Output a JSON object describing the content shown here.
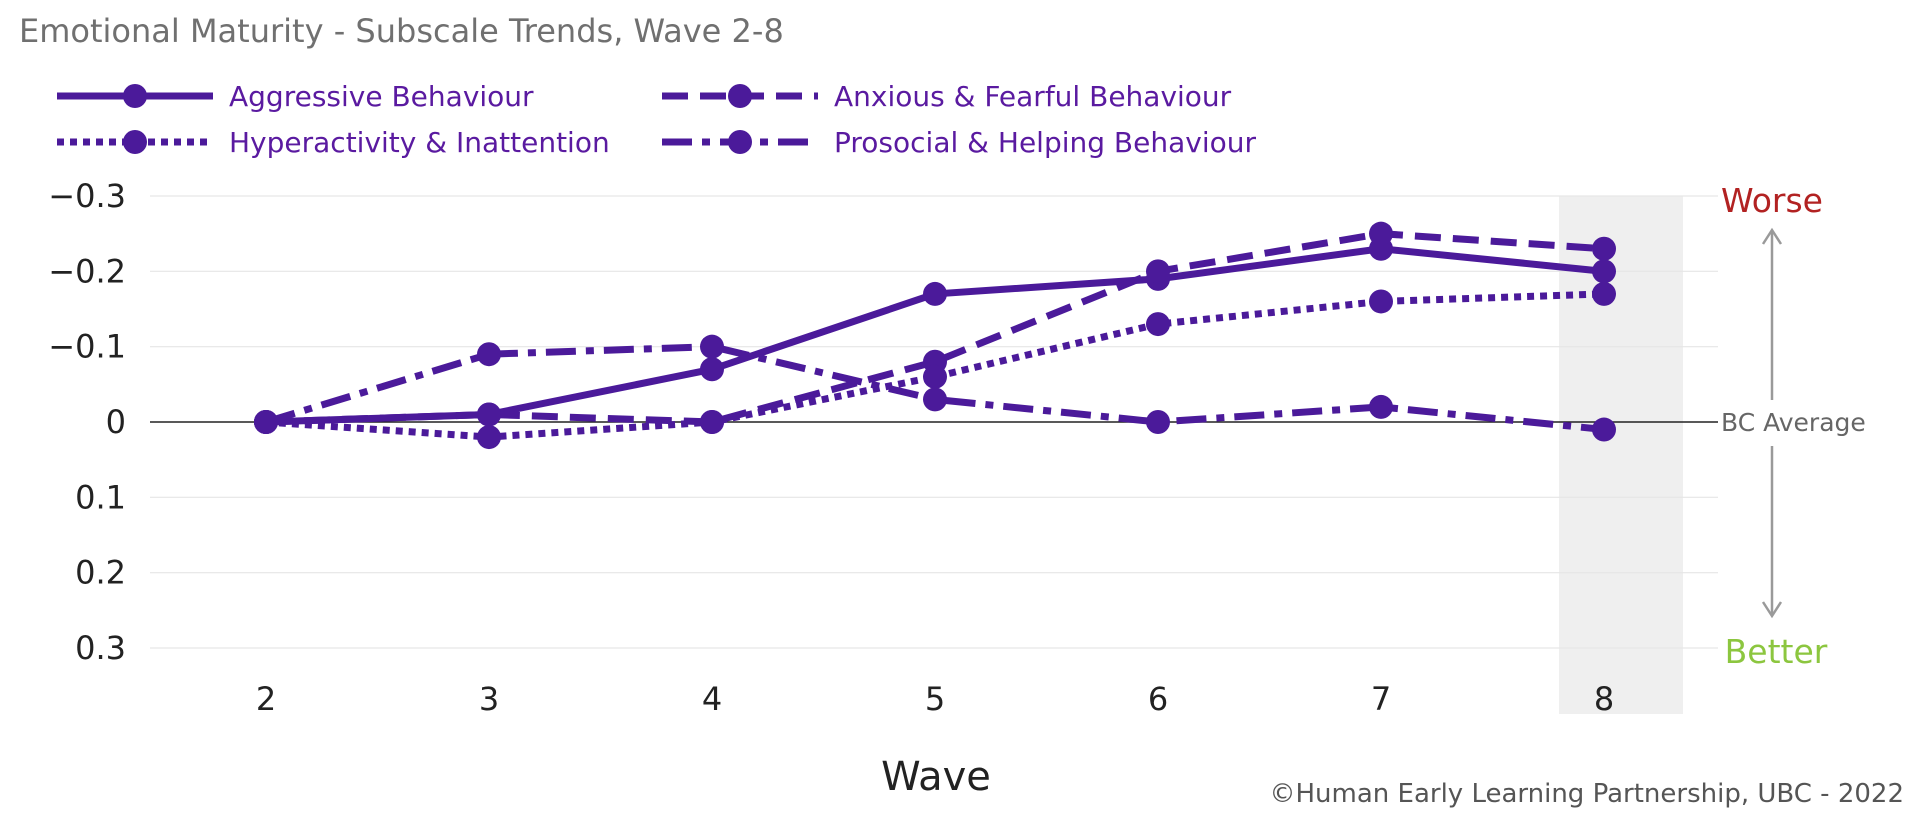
{
  "title": "Emotional Maturity - Subscale Trends, Wave 2-8",
  "credit": "©Human Early Learning Partnership, UBC - 2022",
  "colors": {
    "series": "#4b1a9a",
    "worse": "#b22222",
    "better": "#8cc63f",
    "highlight": "#efefef",
    "grid": "#e6e6e6",
    "baseline": "#222222",
    "arrow": "#9a9a9a"
  },
  "annotations": {
    "worse": "Worse",
    "better": "Better",
    "baseline": "BC Average"
  },
  "chart_data": {
    "type": "line",
    "title": "Emotional Maturity - Subscale Trends, Wave 2-8",
    "xlabel": "Wave",
    "ylabel": "",
    "x": [
      2,
      3,
      4,
      5,
      6,
      7,
      8
    ],
    "y_tick_labels": [
      "−0.3",
      "−0.2",
      "−0.1",
      "0",
      "0.1",
      "0.2",
      "0.3"
    ],
    "y_tick_values": [
      -0.3,
      -0.2,
      -0.1,
      0,
      0.1,
      0.2,
      0.3
    ],
    "ylim": [
      -0.3,
      0.3
    ],
    "y_inverted": true,
    "highlighted_x": 8,
    "legend_position": "top-left",
    "grid": true,
    "series": [
      {
        "name": "Aggressive Behaviour",
        "dash": "solid",
        "values": [
          0,
          -0.01,
          -0.07,
          -0.17,
          -0.19,
          -0.23,
          -0.2
        ]
      },
      {
        "name": "Anxious & Fearful Behaviour",
        "dash": "dashed",
        "values": [
          0,
          -0.01,
          0,
          -0.08,
          -0.2,
          -0.25,
          -0.23
        ]
      },
      {
        "name": "Hyperactivity & Inattention",
        "dash": "dotted",
        "values": [
          0,
          0.02,
          0,
          -0.06,
          -0.13,
          -0.16,
          -0.17
        ]
      },
      {
        "name": "Prosocial & Helping Behaviour",
        "dash": "dashdot",
        "values": [
          0,
          -0.09,
          -0.1,
          -0.03,
          0,
          -0.02,
          0.01
        ]
      }
    ]
  }
}
